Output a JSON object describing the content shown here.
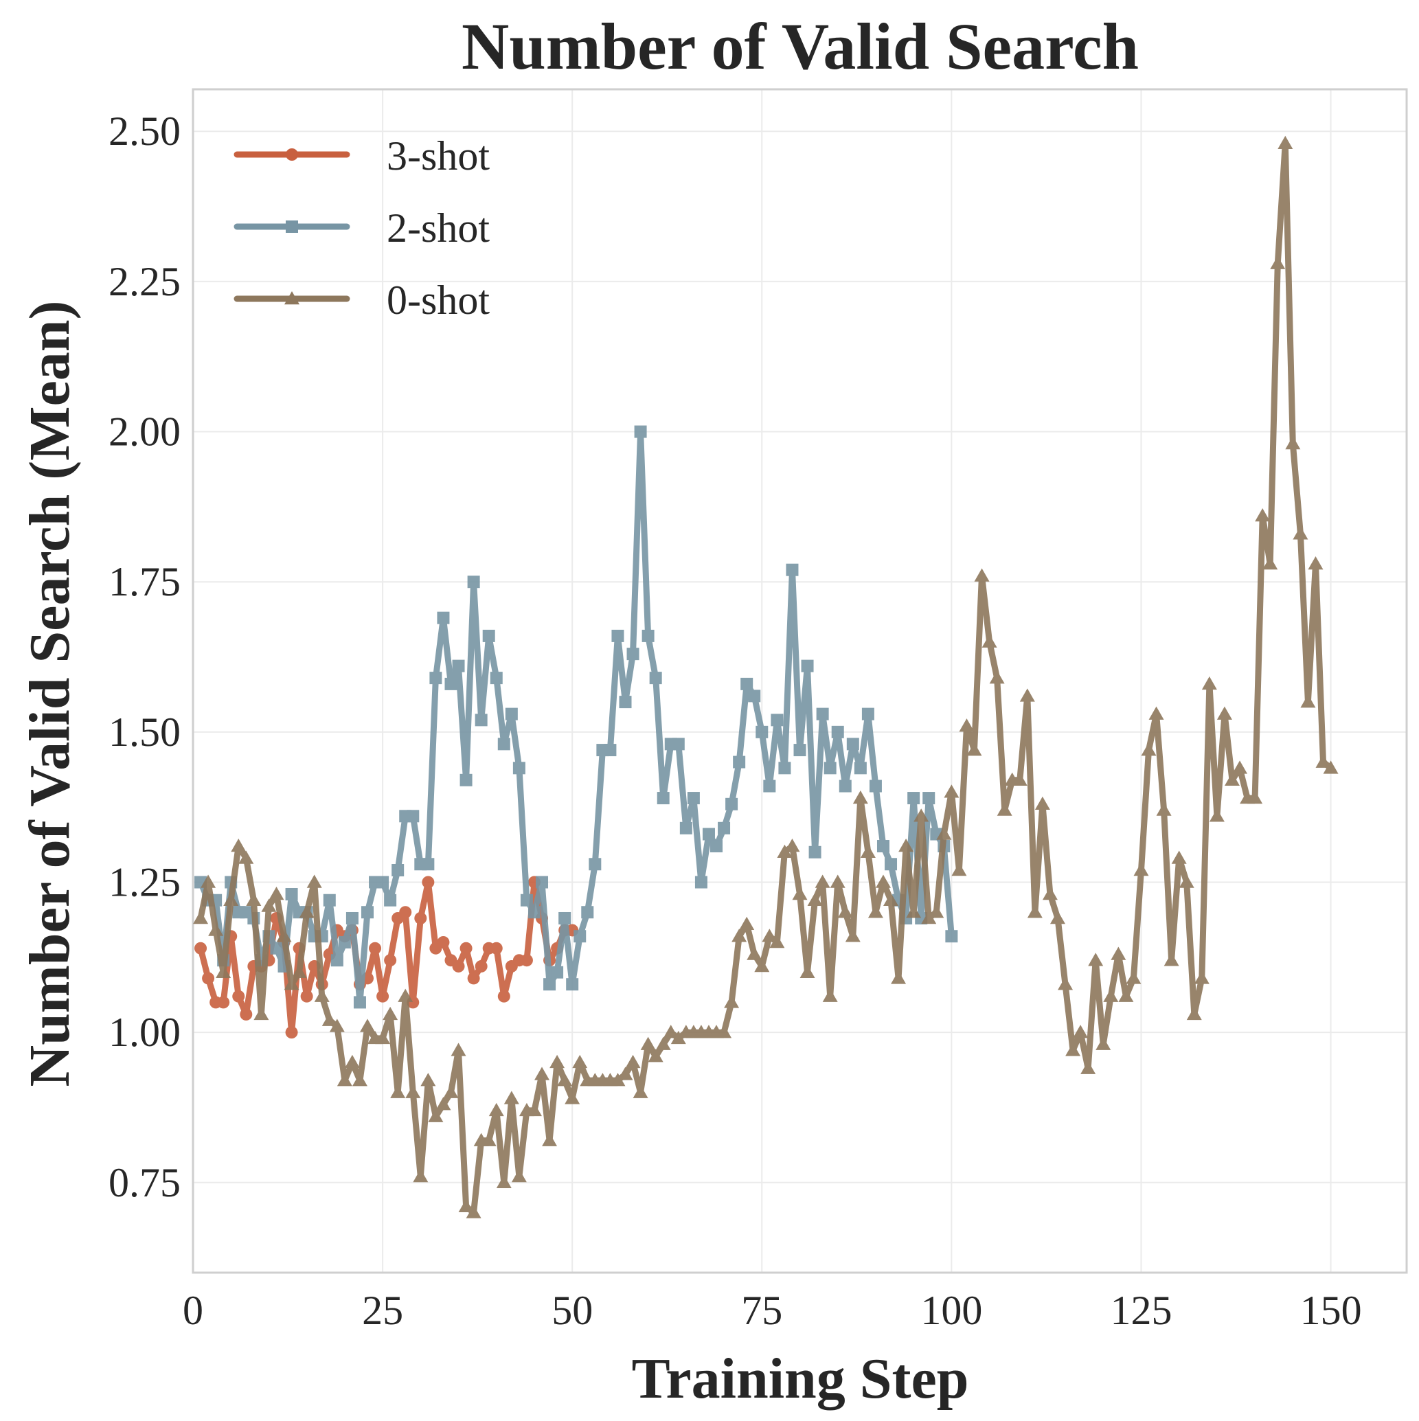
{
  "chart_data": {
    "type": "line",
    "title": "Number of Valid Search",
    "xlabel": "Training Step",
    "ylabel": "Number of Valid Search (Mean)",
    "xlim": [
      0,
      160
    ],
    "ylim": [
      0.6,
      2.57
    ],
    "xticks": [
      0,
      25,
      50,
      75,
      100,
      125,
      150
    ],
    "xtick_labels": [
      "0",
      "25",
      "50",
      "75",
      "100",
      "125",
      "150"
    ],
    "yticks": [
      0.75,
      1.0,
      1.25,
      1.5,
      1.75,
      2.0,
      2.25,
      2.5
    ],
    "ytick_labels": [
      "0.75",
      "1.00",
      "1.25",
      "1.50",
      "1.75",
      "2.00",
      "2.25",
      "2.50"
    ],
    "grid": true,
    "legend_position": "top-left",
    "series": [
      {
        "name": "3-shot",
        "color": "#c8603f",
        "marker": "circle",
        "x": [
          1,
          2,
          3,
          4,
          5,
          6,
          7,
          8,
          9,
          10,
          11,
          12,
          13,
          14,
          15,
          16,
          17,
          18,
          19,
          20,
          21,
          22,
          23,
          24,
          25,
          26,
          27,
          28,
          29,
          30,
          31,
          32,
          33,
          34,
          35,
          36,
          37,
          38,
          39,
          40,
          41,
          42,
          43,
          44,
          45,
          46,
          47,
          48,
          49,
          50
        ],
        "values": [
          1.14,
          1.09,
          1.05,
          1.05,
          1.16,
          1.06,
          1.03,
          1.11,
          1.11,
          1.12,
          1.19,
          1.15,
          1.0,
          1.14,
          1.06,
          1.11,
          1.08,
          1.13,
          1.17,
          1.16,
          1.17,
          1.08,
          1.09,
          1.14,
          1.06,
          1.12,
          1.19,
          1.2,
          1.05,
          1.19,
          1.25,
          1.14,
          1.15,
          1.12,
          1.11,
          1.14,
          1.09,
          1.11,
          1.14,
          1.14,
          1.06,
          1.11,
          1.12,
          1.12,
          1.25,
          1.19,
          1.12,
          1.14,
          1.17,
          1.17
        ]
      },
      {
        "name": "2-shot",
        "color": "#7795a4",
        "marker": "square",
        "x": [
          1,
          2,
          3,
          4,
          5,
          6,
          7,
          8,
          9,
          10,
          11,
          12,
          13,
          14,
          15,
          16,
          17,
          18,
          19,
          20,
          21,
          22,
          23,
          24,
          25,
          26,
          27,
          28,
          29,
          30,
          31,
          32,
          33,
          34,
          35,
          36,
          37,
          38,
          39,
          40,
          41,
          42,
          43,
          44,
          45,
          46,
          47,
          48,
          49,
          50,
          51,
          52,
          53,
          54,
          55,
          56,
          57,
          58,
          59,
          60,
          61,
          62,
          63,
          64,
          65,
          66,
          67,
          68,
          69,
          70,
          71,
          72,
          73,
          74,
          75,
          76,
          77,
          78,
          79,
          80,
          81,
          82,
          83,
          84,
          85,
          86,
          87,
          88,
          89,
          90,
          91,
          92,
          93,
          94,
          95,
          96,
          97,
          98,
          99,
          100
        ],
        "values": [
          1.25,
          1.22,
          1.22,
          1.12,
          1.25,
          1.2,
          1.2,
          1.19,
          1.12,
          1.16,
          1.14,
          1.11,
          1.23,
          1.2,
          1.2,
          1.16,
          1.16,
          1.22,
          1.12,
          1.15,
          1.19,
          1.05,
          1.2,
          1.25,
          1.25,
          1.22,
          1.27,
          1.36,
          1.36,
          1.28,
          1.28,
          1.59,
          1.69,
          1.58,
          1.61,
          1.42,
          1.75,
          1.52,
          1.66,
          1.59,
          1.48,
          1.53,
          1.44,
          1.22,
          1.2,
          1.25,
          1.08,
          1.1,
          1.19,
          1.08,
          1.16,
          1.2,
          1.28,
          1.47,
          1.47,
          1.66,
          1.55,
          1.63,
          2.0,
          1.66,
          1.59,
          1.39,
          1.48,
          1.48,
          1.34,
          1.39,
          1.25,
          1.33,
          1.31,
          1.34,
          1.38,
          1.45,
          1.58,
          1.56,
          1.5,
          1.41,
          1.52,
          1.44,
          1.77,
          1.47,
          1.61,
          1.3,
          1.53,
          1.44,
          1.5,
          1.41,
          1.48,
          1.44,
          1.53,
          1.41,
          1.31,
          1.28,
          1.22,
          1.19,
          1.39,
          1.19,
          1.39,
          1.33,
          1.31,
          1.16
        ]
      },
      {
        "name": "0-shot",
        "color": "#8d775c",
        "marker": "triangle",
        "x": [
          1,
          2,
          3,
          4,
          5,
          6,
          7,
          8,
          9,
          10,
          11,
          12,
          13,
          14,
          15,
          16,
          17,
          18,
          19,
          20,
          21,
          22,
          23,
          24,
          25,
          26,
          27,
          28,
          29,
          30,
          31,
          32,
          33,
          34,
          35,
          36,
          37,
          38,
          39,
          40,
          41,
          42,
          43,
          44,
          45,
          46,
          47,
          48,
          49,
          50,
          51,
          52,
          53,
          54,
          55,
          56,
          57,
          58,
          59,
          60,
          61,
          62,
          63,
          64,
          65,
          66,
          67,
          68,
          69,
          70,
          71,
          72,
          73,
          74,
          75,
          76,
          77,
          78,
          79,
          80,
          81,
          82,
          83,
          84,
          85,
          86,
          87,
          88,
          89,
          90,
          91,
          92,
          93,
          94,
          95,
          96,
          97,
          98,
          99,
          100,
          101,
          102,
          103,
          104,
          105,
          106,
          107,
          108,
          109,
          110,
          111,
          112,
          113,
          114,
          115,
          116,
          117,
          118,
          119,
          120,
          121,
          122,
          123,
          124,
          125,
          126,
          127,
          128,
          129,
          130,
          131,
          132,
          133,
          134,
          135,
          136,
          137,
          138,
          139,
          140,
          141,
          142,
          143,
          144,
          145,
          146,
          147,
          148,
          149,
          150
        ],
        "values": [
          1.19,
          1.25,
          1.17,
          1.1,
          1.22,
          1.31,
          1.29,
          1.22,
          1.03,
          1.21,
          1.23,
          1.16,
          1.08,
          1.1,
          1.2,
          1.25,
          1.06,
          1.02,
          1.01,
          0.92,
          0.95,
          0.92,
          1.01,
          0.99,
          0.99,
          1.03,
          0.9,
          1.06,
          0.9,
          0.76,
          0.92,
          0.86,
          0.88,
          0.9,
          0.97,
          0.71,
          0.7,
          0.82,
          0.82,
          0.87,
          0.75,
          0.89,
          0.76,
          0.87,
          0.87,
          0.93,
          0.82,
          0.95,
          0.92,
          0.89,
          0.95,
          0.92,
          0.92,
          0.92,
          0.92,
          0.92,
          0.93,
          0.95,
          0.9,
          0.98,
          0.96,
          0.98,
          1.0,
          0.99,
          1.0,
          1.0,
          1.0,
          1.0,
          1.0,
          1.0,
          1.05,
          1.16,
          1.18,
          1.13,
          1.11,
          1.16,
          1.15,
          1.3,
          1.31,
          1.23,
          1.1,
          1.22,
          1.25,
          1.06,
          1.25,
          1.2,
          1.16,
          1.39,
          1.3,
          1.2,
          1.25,
          1.22,
          1.09,
          1.31,
          1.2,
          1.36,
          1.19,
          1.2,
          1.33,
          1.4,
          1.27,
          1.51,
          1.47,
          1.76,
          1.65,
          1.59,
          1.37,
          1.42,
          1.42,
          1.56,
          1.2,
          1.38,
          1.23,
          1.19,
          1.08,
          0.97,
          1.0,
          0.94,
          1.12,
          0.98,
          1.06,
          1.13,
          1.06,
          1.09,
          1.27,
          1.47,
          1.53,
          1.37,
          1.12,
          1.29,
          1.25,
          1.03,
          1.09,
          1.58,
          1.36,
          1.53,
          1.42,
          1.44,
          1.39,
          1.39,
          1.86,
          1.78,
          2.28,
          2.48,
          1.98,
          1.83,
          1.55,
          1.78,
          1.45,
          1.44
        ]
      }
    ]
  }
}
